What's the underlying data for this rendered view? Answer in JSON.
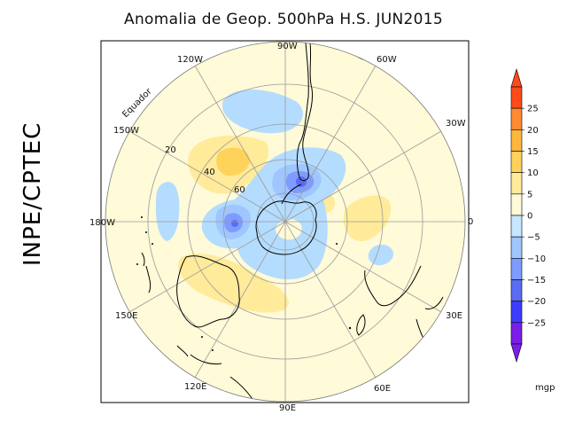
{
  "title": "Anomalia de Geop. 500hPa H.S. JUN2015",
  "side_label": "INPE/CPTEC",
  "longitude_labels": {
    "lon_90w": "90W",
    "lon_60w": "60W",
    "lon_30w": "30W",
    "lon_0": "0",
    "lon_30e": "30E",
    "lon_60e": "60E",
    "lon_90e": "90E",
    "lon_120e": "120E",
    "lon_150e": "150E",
    "lon_180w": "180W",
    "lon_150w": "150W",
    "lon_120w": "120W"
  },
  "latitude_labels": {
    "lat_20": "20",
    "lat_40": "40",
    "lat_60": "60",
    "equator": "Equador"
  },
  "colorbar": {
    "labels": [
      "25",
      "20",
      "15",
      "10",
      "5",
      "0",
      "−5",
      "−10",
      "−15",
      "−20",
      "−25"
    ],
    "unit": "mgp",
    "colors": [
      "#ff4a1a",
      "#ff8a30",
      "#ffb63c",
      "#ffd25a",
      "#ffeb9a",
      "#fffad8",
      "#c8e6ff",
      "#9fc6ff",
      "#7e9cff",
      "#5a6cf2",
      "#3d3cff",
      "#7a1ee8"
    ]
  },
  "colors": {
    "background": "#fffad8",
    "positive": "#ffeb9a",
    "positive_strong": "#ffd25a",
    "negative": "#b4dcff",
    "negative_strong": "#7e9cff",
    "negative_core": "#5a6cf2"
  }
}
